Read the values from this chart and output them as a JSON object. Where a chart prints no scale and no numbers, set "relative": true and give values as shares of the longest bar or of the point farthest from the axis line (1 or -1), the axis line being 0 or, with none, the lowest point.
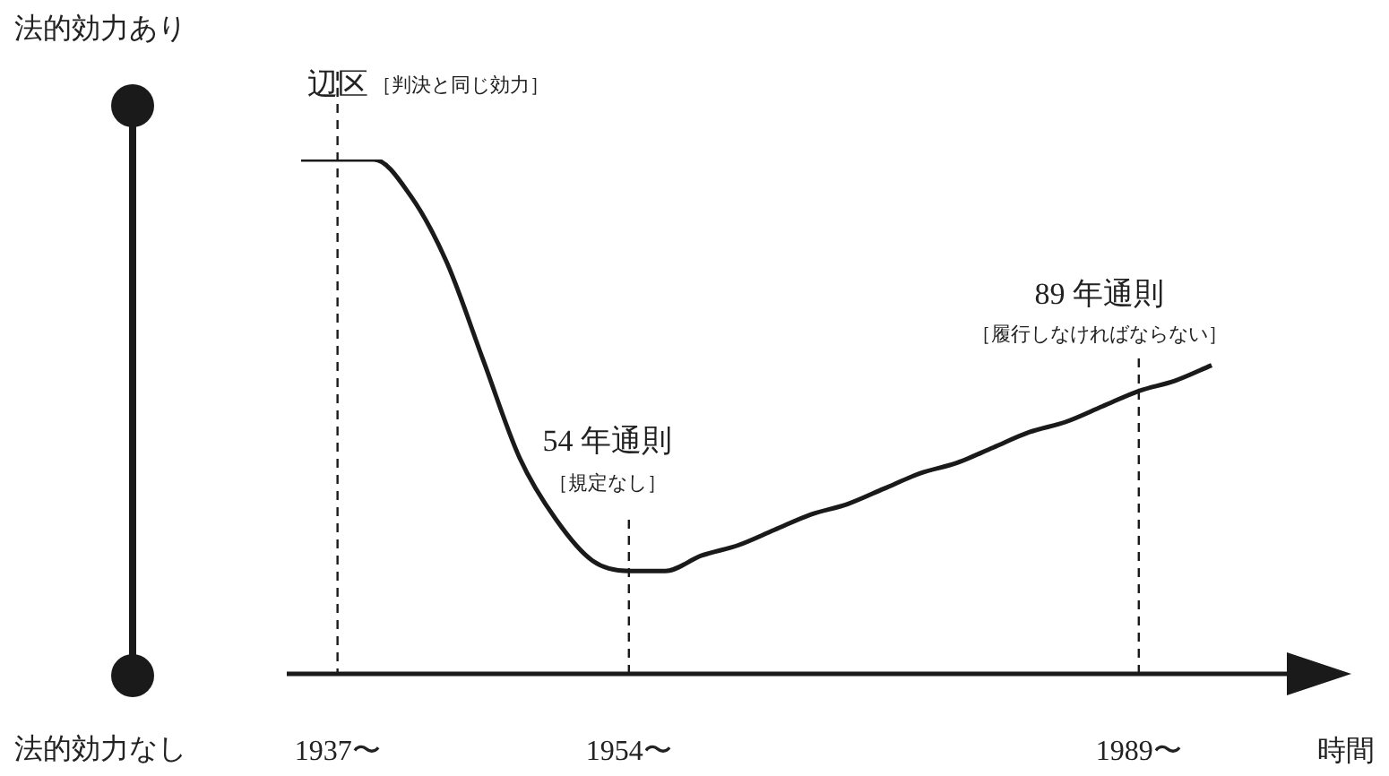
{
  "chart_data": {
    "type": "line",
    "relative": true,
    "xlabel": "時間",
    "categories": [
      null,
      "1937〜",
      null,
      null,
      null,
      null,
      null,
      null,
      null,
      "1954〜",
      null,
      null,
      null,
      null,
      null,
      null,
      null,
      null,
      null,
      null,
      null,
      null,
      null,
      "1989〜",
      null,
      null,
      null,
      null,
      null
    ],
    "series": [
      {
        "color": "#1a1a1a",
        "values": [
          1,
          1,
          1,
          0.93,
          0.8,
          0.61,
          0.42,
          0.3,
          0.22,
          0.2,
          0.2,
          0.23,
          0.25,
          0.28,
          0.31,
          0.33,
          0.36,
          0.39,
          0.41,
          0.44,
          0.47,
          0.49,
          0.52,
          0.55,
          0.57,
          0.6,
          null,
          null,
          null
        ]
      }
    ],
    "ref_lines": [
      {
        "axis": "x",
        "value": "1937〜",
        "label": "辺区",
        "line_style": "dashed"
      },
      {
        "axis": "x",
        "value": "1954〜",
        "label": "54 年通則",
        "line_style": "dashed"
      },
      {
        "axis": "x",
        "value": "1989〜",
        "label": "89 年通則",
        "line_style": "dashed"
      }
    ],
    "annotations": [
      "［判決と同じ効力］",
      "［規定なし］",
      "［履行しなければならない］",
      "法的効力あり",
      "法的効力なし"
    ],
    "marker": "none",
    "line_style": "solid",
    "grid": false,
    "legend": false
  }
}
